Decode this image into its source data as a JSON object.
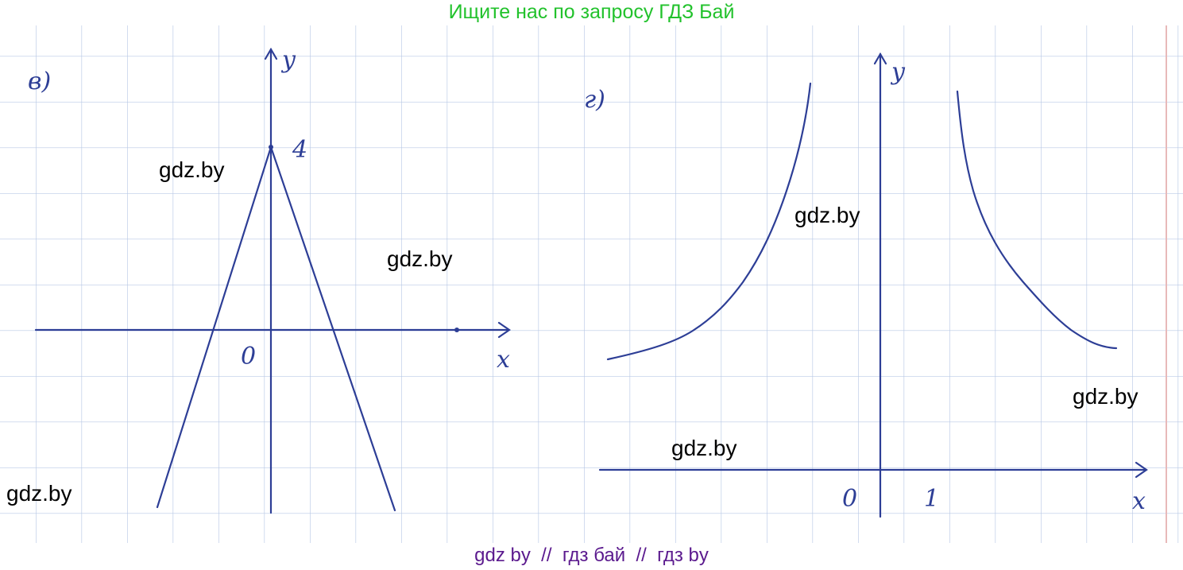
{
  "header": {
    "title": "Ищите нас по запросу ГДЗ Бай"
  },
  "footer": {
    "text": "gdz by  //  гдз бай  //  гдз by"
  },
  "watermarks": [
    "gdz.by",
    "gdz.by",
    "gdz.by",
    "gdz.by",
    "gdz.by",
    "gdz.by"
  ],
  "graphs": [
    {
      "label": "в)",
      "y_axis": "y",
      "x_axis": "x",
      "origin": "0",
      "marks": [
        "4"
      ]
    },
    {
      "label": "г)",
      "y_axis": "y",
      "x_axis": "x",
      "origin": "0",
      "marks": [
        "1"
      ]
    }
  ]
}
